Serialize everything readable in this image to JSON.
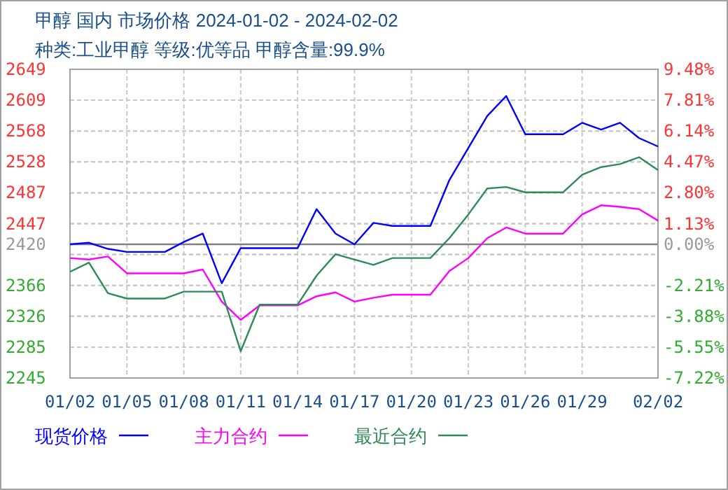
{
  "chart_data": {
    "type": "line",
    "title": "甲醇 国内 市场价格 2024-01-02 - 2024-02-02",
    "subtitle": "种类:工业甲醇 等级:优等品 甲醇含量:99.9%",
    "x": [
      "2024-01-02",
      "2024-01-03",
      "2024-01-04",
      "2024-01-05",
      "2024-01-06",
      "2024-01-07",
      "2024-01-08",
      "2024-01-09",
      "2024-01-10",
      "2024-01-11",
      "2024-01-12",
      "2024-01-13",
      "2024-01-14",
      "2024-01-15",
      "2024-01-16",
      "2024-01-17",
      "2024-01-18",
      "2024-01-19",
      "2024-01-20",
      "2024-01-21",
      "2024-01-22",
      "2024-01-23",
      "2024-01-24",
      "2024-01-25",
      "2024-01-26",
      "2024-01-27",
      "2024-01-28",
      "2024-01-29",
      "2024-01-30",
      "2024-01-31",
      "2024-02-01",
      "2024-02-02"
    ],
    "xlim": [
      "2024-01-02",
      "2024-02-02"
    ],
    "xticks": [
      {
        "value": "2024-01-02",
        "label": "01/02"
      },
      {
        "value": "2024-01-05",
        "label": "01/05"
      },
      {
        "value": "2024-01-08",
        "label": "01/08"
      },
      {
        "value": "2024-01-11",
        "label": "01/11"
      },
      {
        "value": "2024-01-14",
        "label": "01/14"
      },
      {
        "value": "2024-01-17",
        "label": "01/17"
      },
      {
        "value": "2024-01-20",
        "label": "01/20"
      },
      {
        "value": "2024-01-23",
        "label": "01/23"
      },
      {
        "value": "2024-01-26",
        "label": "01/26"
      },
      {
        "value": "2024-01-29",
        "label": "01/29"
      },
      {
        "value": "2024-02-02",
        "label": "02/02"
      }
    ],
    "ylim": [
      2245,
      2649
    ],
    "yticks": [
      {
        "value": 2245,
        "label": "2245"
      },
      {
        "value": 2285.4,
        "label": "2285"
      },
      {
        "value": 2325.8,
        "label": "2326"
      },
      {
        "value": 2366.2,
        "label": "2366"
      },
      {
        "value": 2406.6,
        "label": null
      },
      {
        "value": 2420,
        "label": "2420"
      },
      {
        "value": 2447,
        "label": "2447"
      },
      {
        "value": 2487.4,
        "label": "2487"
      },
      {
        "value": 2527.8,
        "label": "2528"
      },
      {
        "value": 2568.2,
        "label": "2568"
      },
      {
        "value": 2608.6,
        "label": "2609"
      },
      {
        "value": 2649,
        "label": "2649"
      }
    ],
    "y2lim": [
      -7.22,
      9.48
    ],
    "y2ticks": [
      {
        "value": -7.22,
        "label": "-7.22%"
      },
      {
        "value": -5.55,
        "label": "-5.55%"
      },
      {
        "value": -3.88,
        "label": "-3.88%"
      },
      {
        "value": -2.21,
        "label": "-2.21%"
      },
      {
        "value": -0.54,
        "label": null
      },
      {
        "value": 0,
        "label": "0.00%"
      },
      {
        "value": 1.13,
        "label": "1.13%"
      },
      {
        "value": 2.8,
        "label": "2.80%"
      },
      {
        "value": 4.47,
        "label": "4.47%"
      },
      {
        "value": 6.14,
        "label": "6.14%"
      },
      {
        "value": 7.81,
        "label": "7.81%"
      },
      {
        "value": 9.48,
        "label": "9.48%"
      }
    ],
    "ref_lines": [
      {
        "axis": "y",
        "value": 2420,
        "color": "#808080"
      }
    ],
    "grid": true,
    "legend": "bottom",
    "series": [
      {
        "name": "现货价格",
        "color": "#0000ff",
        "values": [
          2420,
          2422,
          2414,
          2410,
          2410,
          2410,
          2423,
          2434,
          2369,
          2415,
          2415,
          2415,
          2415,
          2466,
          2434,
          2420,
          2448,
          2444,
          2444,
          2444,
          2504,
          2546,
          2588,
          2614,
          2564,
          2564,
          2564,
          2579,
          2570,
          2579,
          2559,
          2548
        ]
      },
      {
        "name": "主力合约",
        "color": "#ff00ff",
        "values": [
          2402,
          2400,
          2404,
          2382,
          2382,
          2382,
          2382,
          2387,
          2345,
          2321,
          2340,
          2340,
          2340,
          2352,
          2357,
          2345,
          2350,
          2354,
          2354,
          2354,
          2385,
          2402,
          2428,
          2442,
          2434,
          2434,
          2434,
          2459,
          2471,
          2469,
          2466,
          2451
        ]
      },
      {
        "name": "最近合约",
        "color": "#2e8b57",
        "values": [
          2384,
          2396,
          2356,
          2349,
          2349,
          2349,
          2358,
          2358,
          2358,
          2280,
          2341,
          2341,
          2341,
          2379,
          2407,
          2400,
          2393,
          2402,
          2402,
          2402,
          2428,
          2459,
          2493,
          2495,
          2488,
          2488,
          2488,
          2511,
          2521,
          2525,
          2534,
          2517
        ]
      }
    ]
  }
}
